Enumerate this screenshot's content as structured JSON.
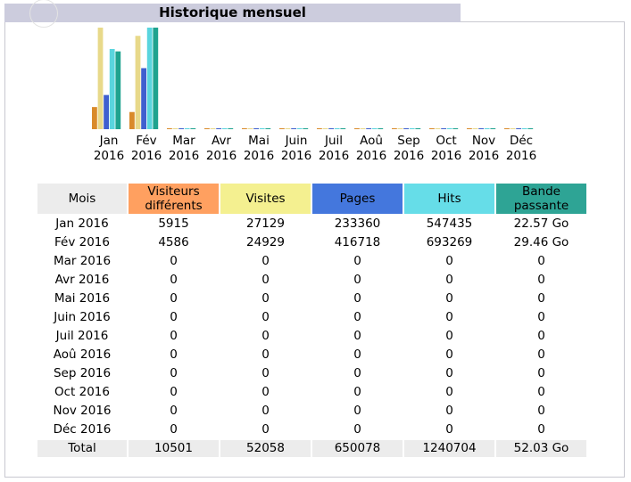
{
  "title": "Historique mensuel",
  "colors": {
    "mois_header": "#ececec",
    "visiteurs": "#ffa060",
    "visites": "#f4f090",
    "pages": "#4477dd",
    "hits": "#66dde8",
    "bande": "#2ea495",
    "total_row": "#ececec"
  },
  "table": {
    "headers": {
      "mois": "Mois",
      "visiteurs": "Visiteurs différents",
      "visites": "Visites",
      "pages": "Pages",
      "hits": "Hits",
      "bande": "Bande passante"
    },
    "rows": [
      {
        "mois": "Jan 2016",
        "visiteurs": "5915",
        "visites": "27129",
        "pages": "233360",
        "hits": "547435",
        "bande": "22.57 Go"
      },
      {
        "mois": "Fév 2016",
        "visiteurs": "4586",
        "visites": "24929",
        "pages": "416718",
        "hits": "693269",
        "bande": "29.46 Go"
      },
      {
        "mois": "Mar 2016",
        "visiteurs": "0",
        "visites": "0",
        "pages": "0",
        "hits": "0",
        "bande": "0"
      },
      {
        "mois": "Avr 2016",
        "visiteurs": "0",
        "visites": "0",
        "pages": "0",
        "hits": "0",
        "bande": "0"
      },
      {
        "mois": "Mai 2016",
        "visiteurs": "0",
        "visites": "0",
        "pages": "0",
        "hits": "0",
        "bande": "0"
      },
      {
        "mois": "Juin 2016",
        "visiteurs": "0",
        "visites": "0",
        "pages": "0",
        "hits": "0",
        "bande": "0"
      },
      {
        "mois": "Juil 2016",
        "visiteurs": "0",
        "visites": "0",
        "pages": "0",
        "hits": "0",
        "bande": "0"
      },
      {
        "mois": "Aoû 2016",
        "visiteurs": "0",
        "visites": "0",
        "pages": "0",
        "hits": "0",
        "bande": "0"
      },
      {
        "mois": "Sep 2016",
        "visiteurs": "0",
        "visites": "0",
        "pages": "0",
        "hits": "0",
        "bande": "0"
      },
      {
        "mois": "Oct 2016",
        "visiteurs": "0",
        "visites": "0",
        "pages": "0",
        "hits": "0",
        "bande": "0"
      },
      {
        "mois": "Nov 2016",
        "visiteurs": "0",
        "visites": "0",
        "pages": "0",
        "hits": "0",
        "bande": "0"
      },
      {
        "mois": "Déc 2016",
        "visiteurs": "0",
        "visites": "0",
        "pages": "0",
        "hits": "0",
        "bande": "0"
      }
    ],
    "total": {
      "mois": "Total",
      "visiteurs": "10501",
      "visites": "52058",
      "pages": "650078",
      "hits": "1240704",
      "bande": "52.03 Go"
    }
  },
  "chart_data": {
    "type": "bar",
    "categories": [
      [
        "Jan",
        "2016"
      ],
      [
        "Fév",
        "2016"
      ],
      [
        "Mar",
        "2016"
      ],
      [
        "Avr",
        "2016"
      ],
      [
        "Mai",
        "2016"
      ],
      [
        "Juin",
        "2016"
      ],
      [
        "Juil",
        "2016"
      ],
      [
        "Aoû",
        "2016"
      ],
      [
        "Sep",
        "2016"
      ],
      [
        "Oct",
        "2016"
      ],
      [
        "Nov",
        "2016"
      ],
      [
        "Déc",
        "2016"
      ]
    ],
    "series": [
      {
        "key": "visiteurs",
        "color": "#d98a2a",
        "values": [
          5915,
          4586,
          0,
          0,
          0,
          0,
          0,
          0,
          0,
          0,
          0,
          0
        ]
      },
      {
        "key": "visites",
        "color": "#e8d98a",
        "values": [
          27129,
          24929,
          0,
          0,
          0,
          0,
          0,
          0,
          0,
          0,
          0,
          0
        ]
      },
      {
        "key": "pages",
        "color": "#3f5fcf",
        "values": [
          233360,
          416718,
          0,
          0,
          0,
          0,
          0,
          0,
          0,
          0,
          0,
          0
        ]
      },
      {
        "key": "hits",
        "color": "#5ad5de",
        "values": [
          547435,
          693269,
          0,
          0,
          0,
          0,
          0,
          0,
          0,
          0,
          0,
          0
        ]
      },
      {
        "key": "bande",
        "color": "#1fa38f",
        "values": [
          22.57,
          29.46,
          0,
          0,
          0,
          0,
          0,
          0,
          0,
          0,
          0,
          0
        ]
      }
    ],
    "max_by_group": {
      "visits": 27129,
      "hits": 693269,
      "bande": 29.46
    }
  }
}
